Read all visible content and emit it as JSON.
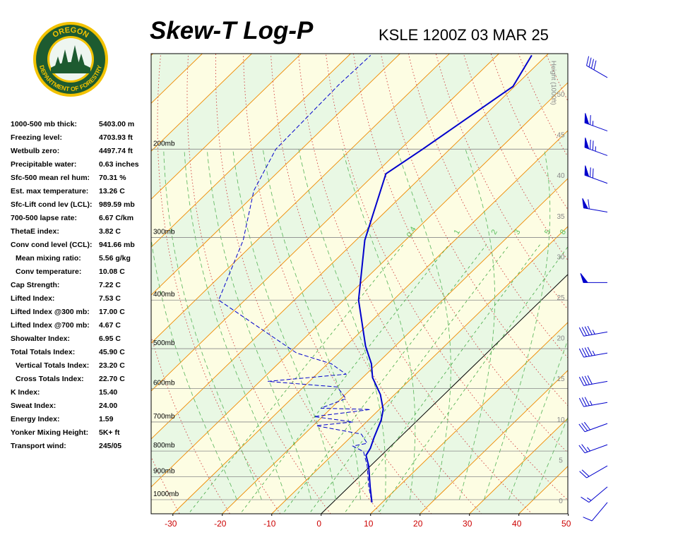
{
  "logo": {
    "top_text": "OREGON",
    "bottom_text": "DEPARTMENT OF FORESTRY"
  },
  "indices": [
    {
      "label": "1000-500 mb thick:",
      "value": "5403.00 m"
    },
    {
      "label": "Freezing level:",
      "value": "4703.93 ft"
    },
    {
      "label": "Wetbulb zero:",
      "value": "4497.74 ft"
    },
    {
      "label": "Precipitable water:",
      "value": "0.63 inches"
    },
    {
      "label": "Sfc-500 mean rel hum:",
      "value": "70.31 %"
    },
    {
      "label": "Est. max temperature:",
      "value": "13.26 C"
    },
    {
      "label": "Sfc-Lift cond lev (LCL):",
      "value": "989.59 mb"
    },
    {
      "label": "700-500 lapse rate:",
      "value": "6.67 C/km"
    },
    {
      "label": "ThetaE index:",
      "value": "3.82 C"
    },
    {
      "label": "Conv cond level (CCL):",
      "value": "941.66 mb"
    },
    {
      "label": "Mean mixing ratio:",
      "value": "5.56 g/kg",
      "indent": true
    },
    {
      "label": "Conv temperature:",
      "value": "10.08 C",
      "indent": true
    },
    {
      "label": "Cap Strength:",
      "value": "7.22 C"
    },
    {
      "label": "Lifted Index:",
      "value": "7.53 C"
    },
    {
      "label": "Lifted Index @300 mb:",
      "value": "17.00 C"
    },
    {
      "label": "Lifted Index @700 mb:",
      "value": "4.67 C"
    },
    {
      "label": "Showalter Index:",
      "value": "6.95 C"
    },
    {
      "label": "Total Totals Index:",
      "value": "45.90 C"
    },
    {
      "label": "Vertical Totals Index:",
      "value": "23.20 C",
      "indent": true
    },
    {
      "label": "Cross Totals Index:",
      "value": "22.70 C",
      "indent": true
    },
    {
      "label": "K Index:",
      "value": "15.40"
    },
    {
      "label": "Sweat Index:",
      "value": "24.00"
    },
    {
      "label": "Energy Index:",
      "value": "1.59"
    },
    {
      "label": "Yonker Mixing Height:",
      "value": "5K+ ft"
    },
    {
      "label": "Transport wind:",
      "value": "245/05"
    }
  ],
  "chart_data": {
    "type": "skew-t",
    "title": "Skew-T Log-P",
    "subtitle": "KSLE 1200Z 03 MAR 25",
    "y2label": "Height (1000ft)",
    "xlim": [
      -34.4,
      49.9
    ],
    "xticks": [
      -30,
      -20,
      -10,
      0,
      10,
      20,
      30,
      40,
      50
    ],
    "ylim": [
      1067,
      129
    ],
    "log_y": true,
    "yticks": [
      {
        "value": 1000,
        "label": "1000mb"
      },
      {
        "value": 900,
        "label": "900mb"
      },
      {
        "value": 800,
        "label": "800mb"
      },
      {
        "value": 700,
        "label": "700mb"
      },
      {
        "value": 600,
        "label": "600mb"
      },
      {
        "value": 500,
        "label": "500mb"
      },
      {
        "value": 400,
        "label": "400mb"
      },
      {
        "value": 300,
        "label": "300mb"
      },
      {
        "value": 200,
        "label": "200mb"
      }
    ],
    "y2lim": [
      -1.65,
      54.95
    ],
    "y2ticks": [
      0,
      5,
      10,
      15,
      20,
      25,
      30,
      35,
      40,
      45,
      50
    ],
    "mixing_ratio": [
      0.4,
      1,
      2,
      3,
      5,
      8
    ],
    "series": [
      {
        "color": "#0000cc",
        "dashed": false,
        "pressure": [
          1013,
          943,
          856,
          816,
          790,
          752,
          694,
          661,
          617,
          571,
          536,
          494,
          400,
          304,
          224,
          200,
          150,
          130
        ],
        "values": [
          7.9,
          4.3,
          -0.4,
          -3.1,
          -3.7,
          -5.2,
          -7.4,
          -9.2,
          -12.9,
          -18.0,
          -21.1,
          -26.0,
          -37.0,
          -48.2,
          -57.8,
          -55.5,
          -50.3,
          -53.0
        ]
      },
      {
        "color": "#0000cc",
        "dashed": true,
        "pressure": [
          1000,
          943,
          856,
          802,
          782,
          772,
          740,
          712,
          700,
          683,
          661,
          657,
          629,
          596,
          581,
          562,
          536,
          510,
          400,
          304,
          242,
          200,
          149,
          130
        ],
        "values": [
          7.2,
          4.0,
          -0.7,
          -4.4,
          -7.7,
          -5.4,
          -8.5,
          -19.4,
          -12.7,
          -21.7,
          -11.8,
          -22.1,
          -19.0,
          -23.2,
          -38.4,
          -24.1,
          -29.2,
          -38.5,
          -65.3,
          -72.8,
          -81.0,
          -85.2,
          -85.9,
          -85.6
        ]
      }
    ],
    "winds": {
      "color": "#0000cc",
      "pressure": [
        1013,
        943,
        856,
        777,
        705,
        640,
        581,
        510,
        463,
        369,
        267,
        234,
        206,
        184,
        144
      ],
      "direction": [
        220,
        230,
        240,
        250,
        250,
        260,
        260,
        260,
        260,
        270,
        280,
        290,
        290,
        290,
        300
      ],
      "speed": [
        10,
        15,
        20,
        25,
        30,
        35,
        40,
        45,
        45,
        50,
        60,
        70,
        75,
        65,
        40
      ]
    }
  }
}
